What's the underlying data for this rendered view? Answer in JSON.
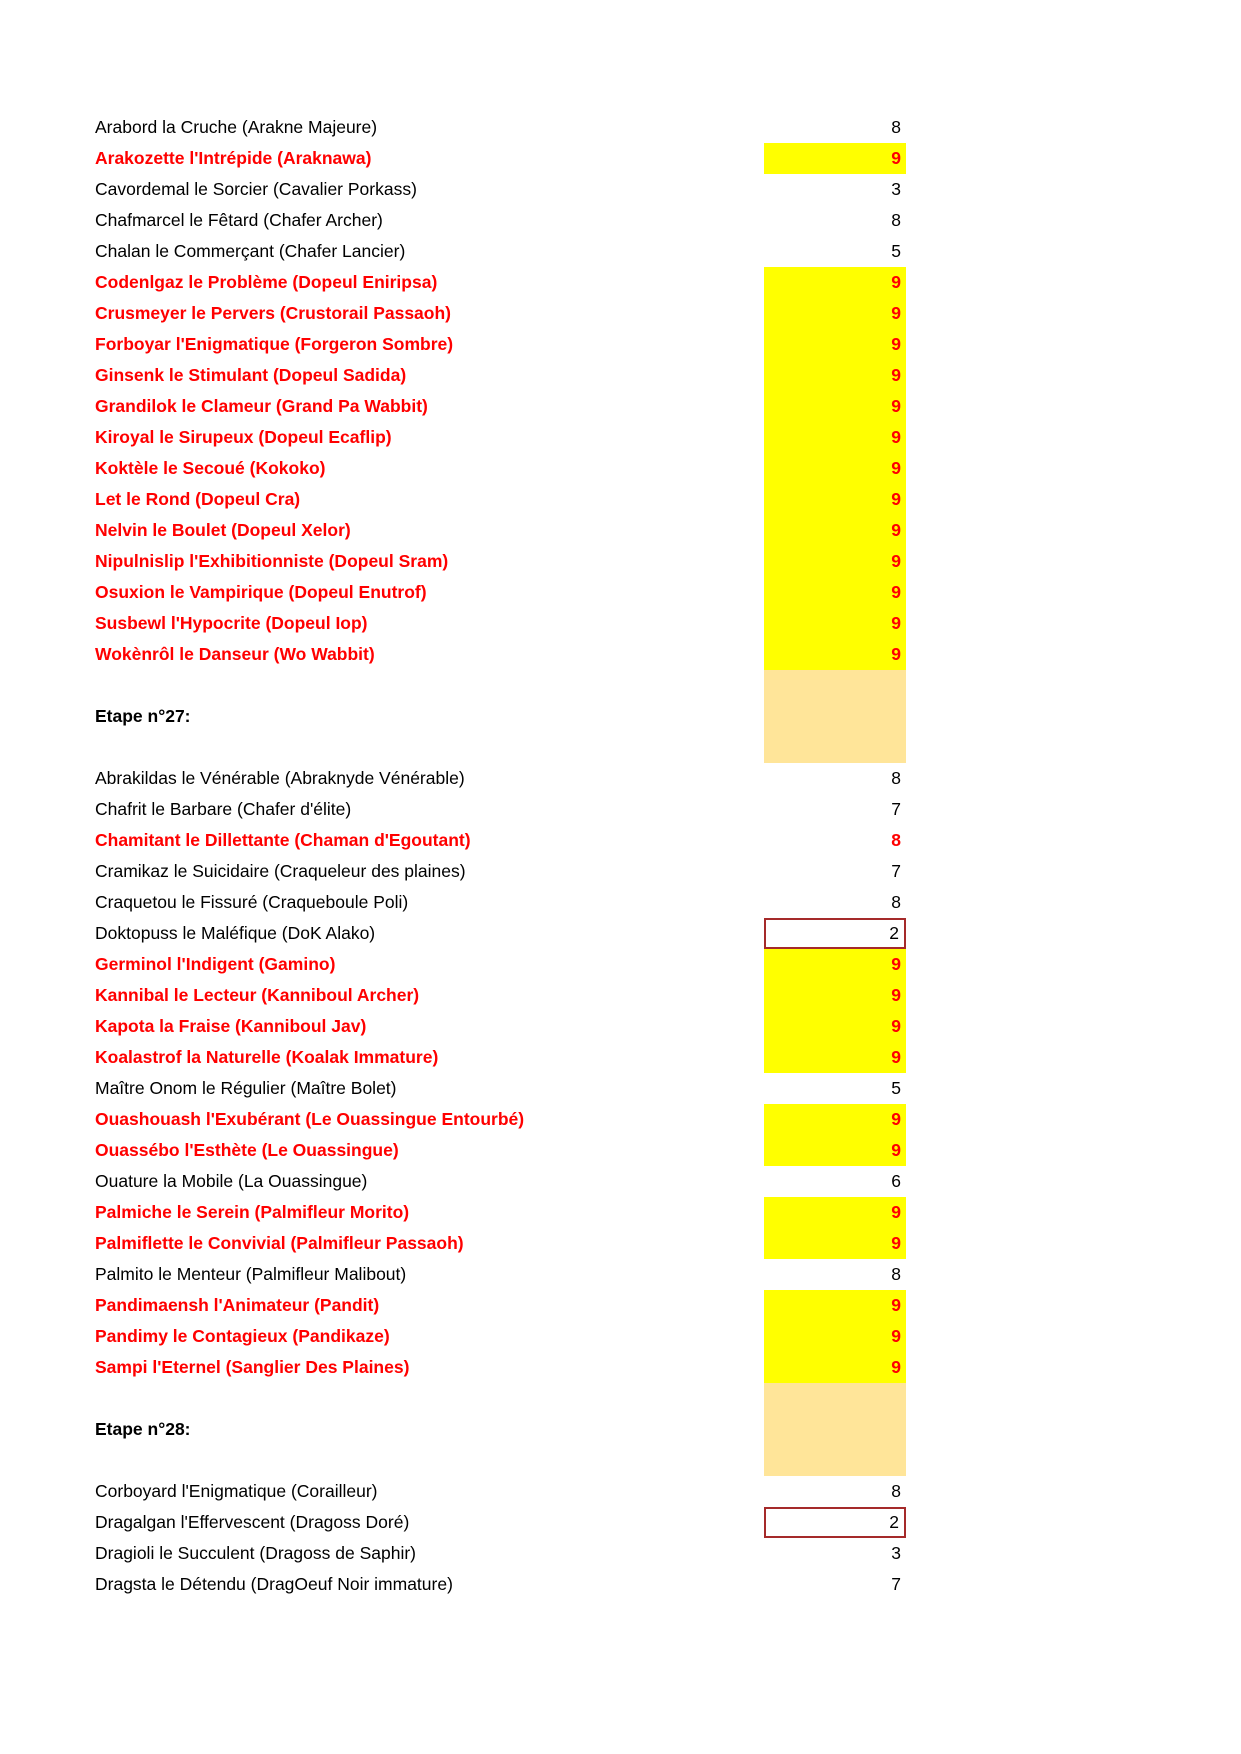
{
  "colors": {
    "highlight_yellow": "#FFFF00",
    "cream_block": "#FFE599",
    "red_text": "#FF0000",
    "black_text": "#000000",
    "box_border": "#A52A2A",
    "page_background": "#FFFFFF"
  },
  "rows": [
    {
      "label": "Arabord la Cruche (Arakne Majeure)",
      "value": "8",
      "style": "normal"
    },
    {
      "label": "Arakozette l'Intrépide (Araknawa)",
      "value": "9",
      "style": "highlight"
    },
    {
      "label": "Cavordemal le Sorcier (Cavalier Porkass)",
      "value": "3",
      "style": "normal"
    },
    {
      "label": "Chafmarcel le Fêtard (Chafer Archer)",
      "value": "8",
      "style": "normal"
    },
    {
      "label": "Chalan le Commerçant (Chafer Lancier)",
      "value": "5",
      "style": "normal"
    },
    {
      "label": "Codenlgaz le Problème (Dopeul Eniripsa)",
      "value": "9",
      "style": "highlight"
    },
    {
      "label": "Crusmeyer le Pervers (Crustorail Passaoh)",
      "value": "9",
      "style": "highlight"
    },
    {
      "label": "Forboyar l'Enigmatique (Forgeron Sombre)",
      "value": "9",
      "style": "highlight"
    },
    {
      "label": "Ginsenk le Stimulant (Dopeul Sadida)",
      "value": "9",
      "style": "highlight"
    },
    {
      "label": "Grandilok le Clameur (Grand Pa Wabbit)",
      "value": "9",
      "style": "highlight"
    },
    {
      "label": "Kiroyal le Sirupeux (Dopeul Ecaflip)",
      "value": "9",
      "style": "highlight"
    },
    {
      "label": "Koktèle le Secoué (Kokoko)",
      "value": "9",
      "style": "highlight"
    },
    {
      "label": "Let le Rond (Dopeul Cra)",
      "value": "9",
      "style": "highlight"
    },
    {
      "label": "Nelvin le Boulet (Dopeul Xelor)",
      "value": "9",
      "style": "highlight"
    },
    {
      "label": "Nipulnislip l'Exhibitionniste (Dopeul Sram)",
      "value": "9",
      "style": "highlight"
    },
    {
      "label": "Osuxion le Vampirique (Dopeul Enutrof)",
      "value": "9",
      "style": "highlight"
    },
    {
      "label": "Susbewl l'Hypocrite (Dopeul Iop)",
      "value": "9",
      "style": "highlight"
    },
    {
      "label": "Wokènrôl le Danseur (Wo Wabbit)",
      "value": "9",
      "style": "highlight"
    },
    {
      "label": "",
      "value": "",
      "style": "spacer"
    },
    {
      "label": "Etape n°27:",
      "value": "",
      "style": "header"
    },
    {
      "label": "",
      "value": "",
      "style": "spacer"
    },
    {
      "label": "Abrakildas le Vénérable (Abraknyde Vénérable)",
      "value": "8",
      "style": "normal"
    },
    {
      "label": "Chafrit le Barbare (Chafer d'élite)",
      "value": "7",
      "style": "normal"
    },
    {
      "label": "Chamitant le Dillettante (Chaman d'Egoutant)",
      "value": "8",
      "style": "red"
    },
    {
      "label": "Cramikaz le Suicidaire (Craqueleur des plaines)",
      "value": "7",
      "style": "normal"
    },
    {
      "label": "Craquetou le Fissuré (Craqueboule Poli)",
      "value": "8",
      "style": "normal"
    },
    {
      "label": "Doktopuss le Maléfique (DoK Alako)",
      "value": "2",
      "style": "boxed"
    },
    {
      "label": "Germinol l'Indigent (Gamino)",
      "value": "9",
      "style": "highlight"
    },
    {
      "label": "Kannibal le Lecteur (Kanniboul Archer)",
      "value": "9",
      "style": "highlight"
    },
    {
      "label": "Kapota la Fraise (Kanniboul Jav)",
      "value": "9",
      "style": "highlight"
    },
    {
      "label": "Koalastrof la Naturelle (Koalak Immature)",
      "value": "9",
      "style": "highlight"
    },
    {
      "label": "Maître Onom le Régulier (Maître Bolet)",
      "value": "5",
      "style": "normal"
    },
    {
      "label": "Ouashouash l'Exubérant (Le Ouassingue Entourbé)",
      "value": "9",
      "style": "highlight"
    },
    {
      "label": "Ouassébo l'Esthète (Le Ouassingue)",
      "value": "9",
      "style": "highlight"
    },
    {
      "label": "Ouature la Mobile (La Ouassingue)",
      "value": "6",
      "style": "normal"
    },
    {
      "label": "Palmiche le Serein (Palmifleur Morito)",
      "value": "9",
      "style": "highlight"
    },
    {
      "label": "Palmiflette le Convivial (Palmifleur Passaoh)",
      "value": "9",
      "style": "highlight"
    },
    {
      "label": "Palmito le Menteur (Palmifleur Malibout)",
      "value": "8",
      "style": "normal"
    },
    {
      "label": "Pandimaensh l'Animateur (Pandit)",
      "value": "9",
      "style": "highlight"
    },
    {
      "label": "Pandimy le Contagieux (Pandikaze)",
      "value": "9",
      "style": "highlight"
    },
    {
      "label": "Sampi l'Eternel (Sanglier Des Plaines)",
      "value": "9",
      "style": "highlight"
    },
    {
      "label": "",
      "value": "",
      "style": "spacer"
    },
    {
      "label": "Etape n°28:",
      "value": "",
      "style": "header"
    },
    {
      "label": "",
      "value": "",
      "style": "spacer"
    },
    {
      "label": "Corboyard l'Enigmatique (Corailleur)",
      "value": "8",
      "style": "normal"
    },
    {
      "label": "Dragalgan l'Effervescent (Dragoss Doré)",
      "value": "2",
      "style": "boxed"
    },
    {
      "label": "Dragioli le Succulent (Dragoss de Saphir)",
      "value": "3",
      "style": "normal"
    },
    {
      "label": "Dragsta le Détendu (DragOeuf Noir immature)",
      "value": "7",
      "style": "normal"
    }
  ]
}
